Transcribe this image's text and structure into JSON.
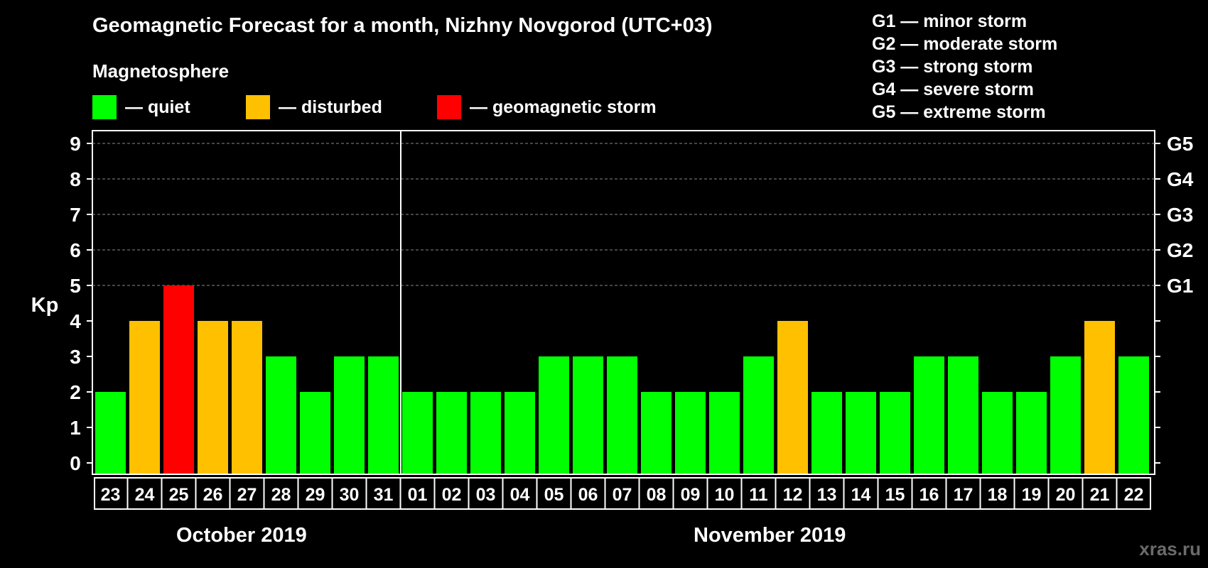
{
  "title": "Geomagnetic Forecast for a month, Nizhny Novgorod (UTC+03)",
  "legend": {
    "heading": "Magnetosphere",
    "items": [
      {
        "label": "— quiet",
        "color": "#00ff00"
      },
      {
        "label": "— disturbed",
        "color": "#ffc000"
      },
      {
        "label": "— geomagnetic storm",
        "color": "#ff0000"
      }
    ]
  },
  "storm_levels": [
    "G1 — minor storm",
    "G2 — moderate storm",
    "G3 — strong storm",
    "G4 — severe storm",
    "G5 — extreme storm"
  ],
  "months": [
    "October 2019",
    "November 2019"
  ],
  "watermark": "xras.ru",
  "chart_data": {
    "type": "bar",
    "title": "Geomagnetic Forecast for a month, Nizhny Novgorod (UTC+03)",
    "ylabel": "Kp",
    "ylim": [
      0,
      9
    ],
    "yticks": [
      "0",
      "1",
      "2",
      "3",
      "4",
      "5",
      "6",
      "7",
      "8",
      "9"
    ],
    "right_axis_labels": [
      {
        "value": 5,
        "label": "G1"
      },
      {
        "value": 6,
        "label": "G2"
      },
      {
        "value": 7,
        "label": "G3"
      },
      {
        "value": 8,
        "label": "G4"
      },
      {
        "value": 9,
        "label": "G5"
      }
    ],
    "grid": true,
    "categories": [
      "23",
      "24",
      "25",
      "26",
      "27",
      "28",
      "29",
      "30",
      "31",
      "01",
      "02",
      "03",
      "04",
      "05",
      "06",
      "07",
      "08",
      "09",
      "10",
      "11",
      "12",
      "13",
      "14",
      "15",
      "16",
      "17",
      "18",
      "19",
      "20",
      "21",
      "22"
    ],
    "values": [
      2,
      4,
      5,
      4,
      4,
      3,
      2,
      3,
      3,
      2,
      2,
      2,
      2,
      3,
      3,
      3,
      2,
      2,
      2,
      3,
      4,
      2,
      2,
      2,
      3,
      3,
      2,
      2,
      3,
      4,
      3
    ],
    "status": [
      "quiet",
      "disturbed",
      "storm",
      "disturbed",
      "disturbed",
      "quiet",
      "quiet",
      "quiet",
      "quiet",
      "quiet",
      "quiet",
      "quiet",
      "quiet",
      "quiet",
      "quiet",
      "quiet",
      "quiet",
      "quiet",
      "quiet",
      "quiet",
      "disturbed",
      "quiet",
      "quiet",
      "quiet",
      "quiet",
      "quiet",
      "quiet",
      "quiet",
      "quiet",
      "disturbed",
      "quiet"
    ],
    "status_colors": {
      "quiet": "#00ff00",
      "disturbed": "#ffc000",
      "storm": "#ff0000"
    },
    "month_split_after": "31"
  }
}
